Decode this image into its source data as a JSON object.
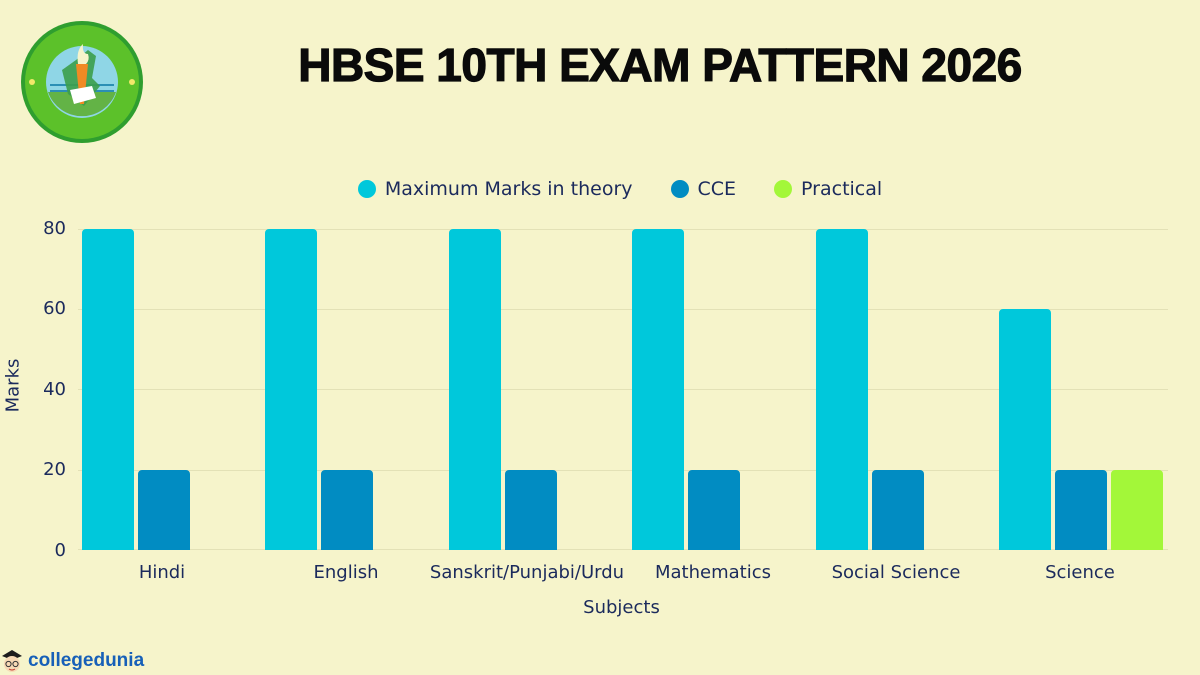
{
  "header": {
    "title": "HBSE 10TH EXAM PATTERN 2026",
    "logo": "hbse-board-emblem"
  },
  "footer": {
    "brand": "collegedunia",
    "brand_icon": "collegedunia-mascot-icon"
  },
  "colors": {
    "background": "#f6f4cb",
    "theory": "#00c8db",
    "cce": "#018cc2",
    "practical": "#a3f739",
    "text": "#1b2a5c"
  },
  "chart_data": {
    "type": "bar",
    "title": "HBSE 10TH EXAM PATTERN 2026",
    "xlabel": "Subjects",
    "ylabel": "Marks",
    "ylim": [
      0,
      80
    ],
    "yticks": [
      0,
      20,
      40,
      60,
      80
    ],
    "grid": true,
    "legend_position": "top",
    "categories": [
      "Hindi",
      "English",
      "Sanskrit/Punjabi/Urdu",
      "Mathematics",
      "Social Science",
      "Science"
    ],
    "series": [
      {
        "name": "Maximum Marks in theory",
        "color": "#00c8db",
        "values": [
          80,
          80,
          80,
          80,
          80,
          60
        ]
      },
      {
        "name": "CCE",
        "color": "#018cc2",
        "values": [
          20,
          20,
          20,
          20,
          20,
          20
        ]
      },
      {
        "name": "Practical",
        "color": "#a3f739",
        "values": [
          0,
          0,
          0,
          0,
          0,
          20
        ]
      }
    ]
  }
}
